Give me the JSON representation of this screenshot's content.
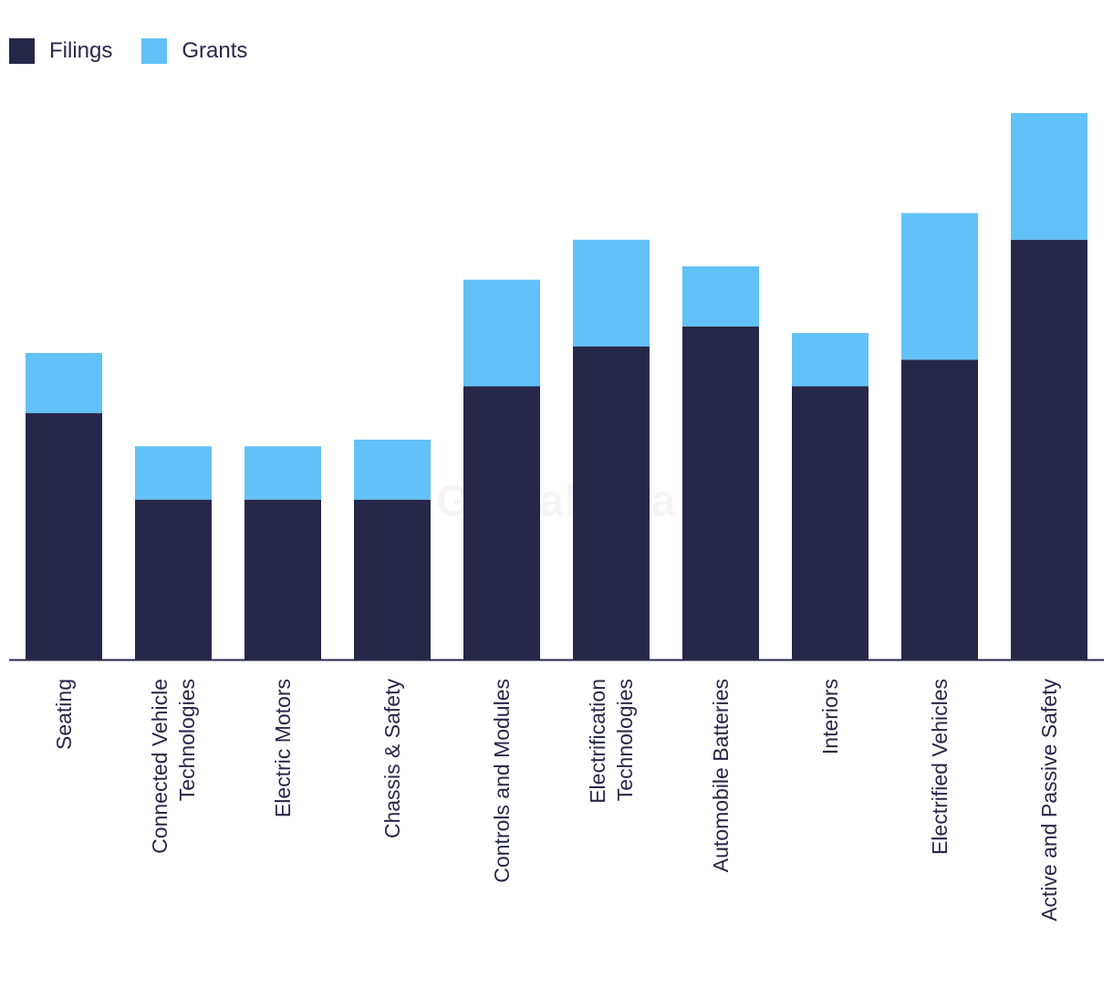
{
  "legend": {
    "filings": "Filings",
    "grants": "Grants"
  },
  "colors": {
    "filings": "#27274a",
    "grants": "#62c1f7",
    "axis": "#27274a"
  },
  "watermark": "GlobalData",
  "chart_data": {
    "type": "bar",
    "stacked": true,
    "title": "",
    "xlabel": "",
    "ylabel": "",
    "ylim": [
      0,
      820
    ],
    "legend_position": "top-left",
    "grid": false,
    "categories": [
      [
        "Seating"
      ],
      [
        "Connected Vehicle",
        "Technologies"
      ],
      [
        "Electric Motors"
      ],
      [
        "Chassis & Safety"
      ],
      [
        "Controls and Modules"
      ],
      [
        "Electrification",
        "Technologies"
      ],
      [
        "Automobile Batteries"
      ],
      [
        "Interiors"
      ],
      [
        "Electrified Vehicles"
      ],
      [
        "Active and Passive Safety"
      ]
    ],
    "series": [
      {
        "name": "Filings",
        "values": [
          370,
          240,
          240,
          240,
          410,
          470,
          500,
          410,
          450,
          630
        ]
      },
      {
        "name": "Grants",
        "values": [
          90,
          80,
          80,
          90,
          160,
          160,
          90,
          80,
          220,
          190
        ]
      }
    ]
  }
}
